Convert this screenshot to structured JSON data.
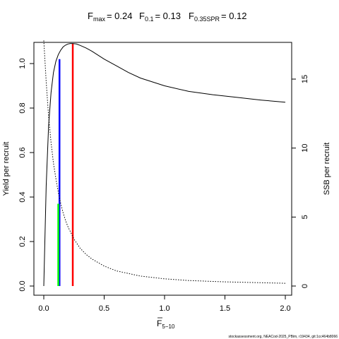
{
  "chart_data": {
    "type": "line",
    "title_parts": {
      "fmax_label": "F",
      "fmax_sub": "max",
      "fmax_value": "= 0.24",
      "f01_label": "F",
      "f01_sub": "0.1",
      "f01_value": "= 0.13",
      "fspr_label": "F",
      "fspr_sub": "0.35SPR",
      "fspr_value": "= 0.12"
    },
    "xlabel_main": "F",
    "xlabel_sub": "5−10",
    "ylabel_left": "Yield per recruit",
    "ylabel_right": "SSB per recruit",
    "xlim": [
      0,
      2
    ],
    "ylim_left": [
      0,
      1.1
    ],
    "ylim_right": [
      0,
      17.9
    ],
    "x_ticks": [
      0,
      0.5,
      1,
      1.5,
      2
    ],
    "x_tick_labels": [
      "0.0",
      "0.5",
      "1.0",
      "1.5",
      "2.0"
    ],
    "y_left_ticks": [
      0,
      0.2,
      0.4,
      0.6,
      0.8,
      1.0
    ],
    "y_left_tick_labels": [
      "0.0",
      "0.2",
      "0.4",
      "0.6",
      "0.8",
      "1.0"
    ],
    "y_right_ticks": [
      0,
      5,
      10,
      15
    ],
    "y_right_tick_labels": [
      "0",
      "5",
      "10",
      "15"
    ],
    "series": [
      {
        "axis": "left",
        "style": "solid",
        "color": "#000000",
        "x": [
          0,
          0.02,
          0.04,
          0.06,
          0.08,
          0.1,
          0.12,
          0.14,
          0.16,
          0.18,
          0.2,
          0.22,
          0.24,
          0.27,
          0.3,
          0.35,
          0.4,
          0.5,
          0.6,
          0.7,
          0.8,
          1.0,
          1.2,
          1.4,
          1.6,
          1.8,
          2.0
        ],
        "values": [
          0.0,
          0.45,
          0.72,
          0.87,
          0.96,
          1.01,
          1.04,
          1.06,
          1.075,
          1.083,
          1.088,
          1.09,
          1.09,
          1.088,
          1.082,
          1.07,
          1.055,
          1.02,
          0.99,
          0.96,
          0.935,
          0.9,
          0.875,
          0.86,
          0.848,
          0.836,
          0.826
        ]
      },
      {
        "axis": "right",
        "style": "dotted",
        "color": "#000000",
        "x": [
          0,
          0.02,
          0.04,
          0.06,
          0.08,
          0.1,
          0.12,
          0.14,
          0.16,
          0.18,
          0.2,
          0.25,
          0.3,
          0.35,
          0.4,
          0.5,
          0.6,
          0.8,
          1.0,
          1.2,
          1.5,
          2.0
        ],
        "values": [
          17.8,
          14.8,
          12.3,
          10.4,
          8.9,
          7.8,
          6.8,
          6.0,
          5.3,
          4.75,
          4.3,
          3.4,
          2.75,
          2.3,
          1.95,
          1.45,
          1.1,
          0.72,
          0.52,
          0.4,
          0.3,
          0.2
        ]
      }
    ],
    "reference_lines": [
      {
        "x": 0.24,
        "y_top": 1.09,
        "color": "#ff0000"
      },
      {
        "x": 0.13,
        "y_top": 1.02,
        "color": "#0000ff"
      },
      {
        "x": 0.12,
        "y_top": 0.37,
        "color": "#00ff00"
      }
    ],
    "footer": "stockassessment.org, NEACod-2025_PBim, r19434, git:1cc464b8066"
  }
}
